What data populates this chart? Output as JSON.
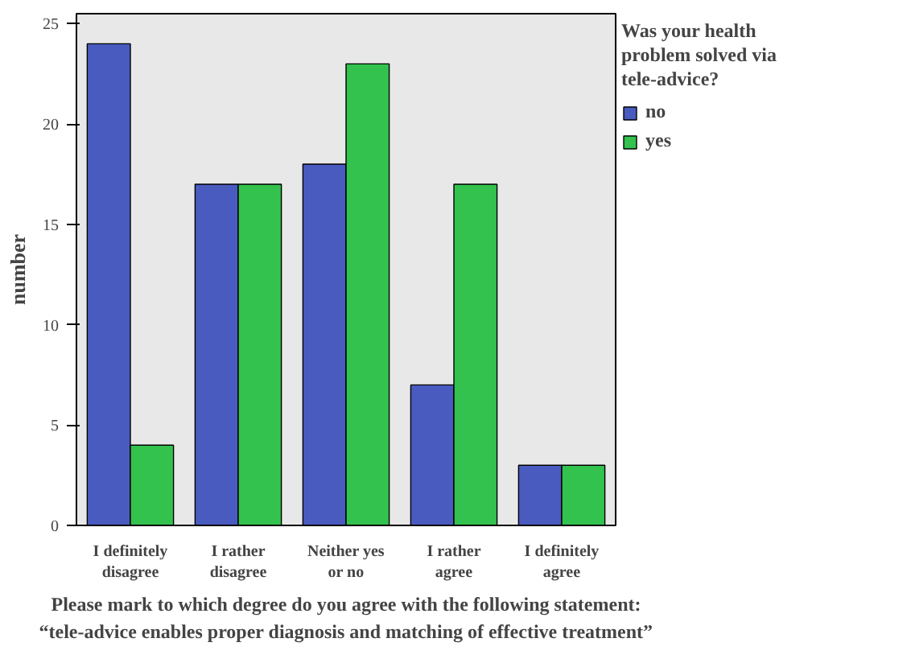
{
  "chart_data": {
    "type": "bar",
    "categories": [
      "I definitely disagree",
      "I rather disagree",
      "Neither yes or no",
      "I rather agree",
      "I definitely agree"
    ],
    "series": [
      {
        "name": "no",
        "color": "#4a5bbf",
        "values": [
          24,
          17,
          18,
          7,
          3
        ]
      },
      {
        "name": "yes",
        "color": "#33c24d",
        "values": [
          4,
          17,
          23,
          17,
          3
        ]
      }
    ],
    "ylim": [
      0,
      25.5
    ],
    "yticks": [
      0,
      5,
      10,
      15,
      20,
      25
    ],
    "ylabel": "number",
    "legend_title": "Was your health problem solved via tele-advice?",
    "legend": "right",
    "xlabel": "Please mark to which degree do you agree with the following statement:\n“tele-advice enables proper diagnosis and matching of effective treatment”"
  }
}
